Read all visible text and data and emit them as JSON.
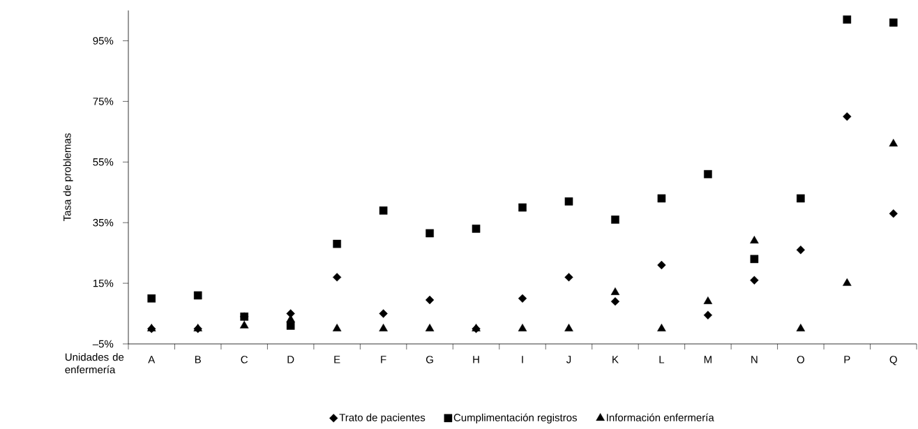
{
  "chart_data": {
    "type": "scatter",
    "ylabel": "Tasa de problemas",
    "xlabel": "Unidades de enfermería",
    "categories": [
      "A",
      "B",
      "C",
      "D",
      "E",
      "F",
      "G",
      "H",
      "I",
      "J",
      "K",
      "L",
      "M",
      "N",
      "O",
      "P",
      "Q"
    ],
    "ylim": [
      -5,
      105
    ],
    "yticks": [
      {
        "value": -5,
        "label": "–5%"
      },
      {
        "value": 15,
        "label": "15%"
      },
      {
        "value": 35,
        "label": "35%"
      },
      {
        "value": 55,
        "label": "55%"
      },
      {
        "value": 75,
        "label": "75%"
      },
      {
        "value": 95,
        "label": "95%"
      }
    ],
    "legend": "bottom",
    "series": [
      {
        "name": "Trato de pacientes",
        "color": "#000000",
        "marker": "diamond",
        "values": [
          0,
          0,
          4,
          5,
          17,
          5,
          9.5,
          0,
          10,
          17,
          9,
          21,
          4.5,
          16,
          26,
          70,
          38
        ]
      },
      {
        "name": "Cumplimentación registros",
        "color": "#000000",
        "marker": "square",
        "values": [
          10,
          11,
          4,
          1,
          28,
          39,
          31.5,
          33,
          40,
          42,
          36,
          43,
          51,
          23,
          43,
          102,
          101
        ]
      },
      {
        "name": "Información enfermería",
        "color": "#000000",
        "marker": "triangle",
        "values": [
          0,
          0,
          1,
          3,
          0,
          0,
          0,
          0,
          0,
          0,
          12,
          0,
          9,
          29,
          0,
          15,
          61
        ]
      }
    ]
  }
}
